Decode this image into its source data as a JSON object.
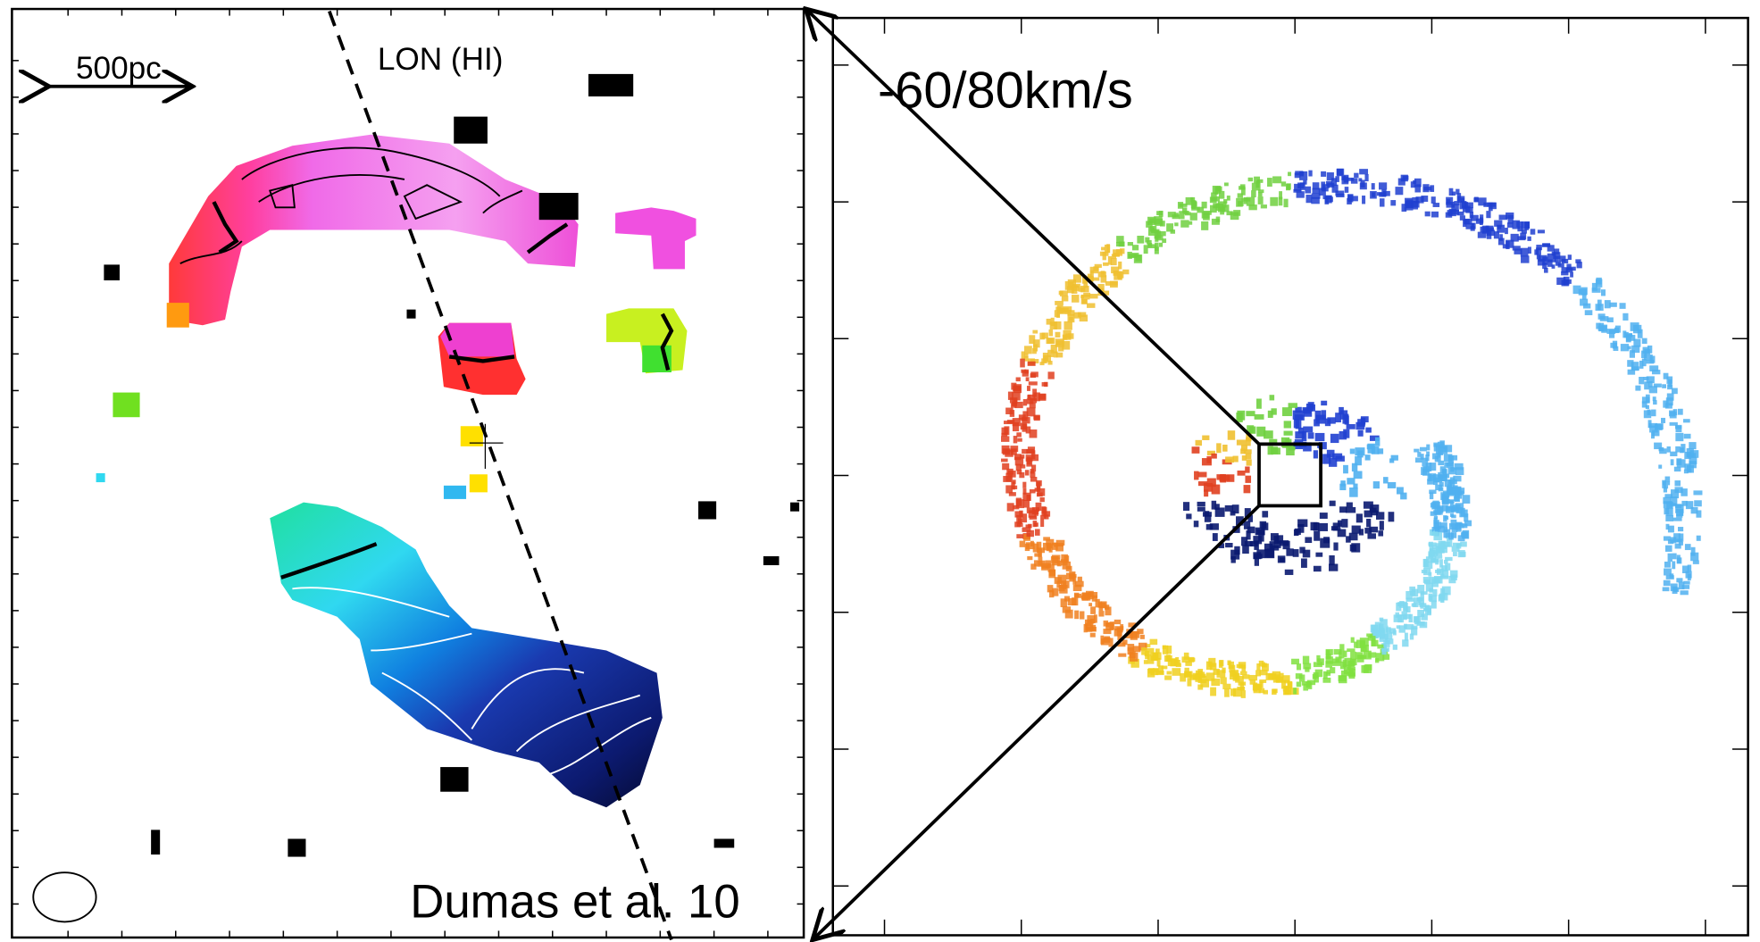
{
  "left_panel": {
    "scale_bar": "500pc",
    "axis_label": "LON (HI)",
    "credit": "Dumas et al. 10"
  },
  "right_panel": {
    "velocity_range": "-60/80km/s"
  }
}
